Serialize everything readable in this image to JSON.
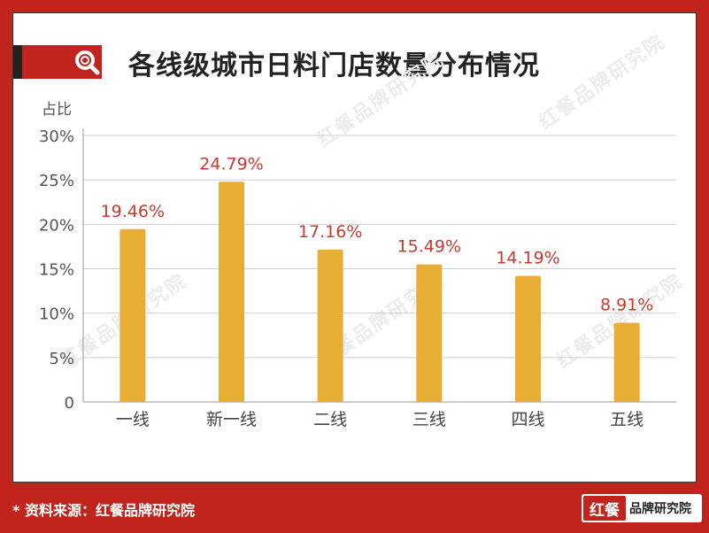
{
  "header": {
    "title": "各线级城市日料门店数量分布情况",
    "icon": "search-icon"
  },
  "colors": {
    "frame": "#c0241d",
    "bar": "#e8ad35",
    "label": "#c9392f"
  },
  "chart_data": {
    "type": "bar",
    "title": "各线级城市日料门店数量分布情况",
    "ylabel": "占比",
    "xlabel": "",
    "categories": [
      "一线",
      "新一线",
      "二线",
      "三线",
      "四线",
      "五线"
    ],
    "values": [
      19.46,
      24.79,
      17.16,
      15.49,
      14.19,
      8.91
    ],
    "value_labels": [
      "19.46%",
      "24.79%",
      "17.16%",
      "15.49%",
      "14.19%",
      "8.91%"
    ],
    "yticks": [
      "0",
      "5%",
      "10%",
      "15%",
      "20%",
      "25%",
      "30%"
    ],
    "ylim": [
      0,
      30
    ],
    "grid": true
  },
  "watermark": "红餐品牌研究院",
  "footer": {
    "source": "* 资料来源：红餐品牌研究院",
    "brand_mark": "红餐",
    "brand_name": "品牌研究院"
  }
}
